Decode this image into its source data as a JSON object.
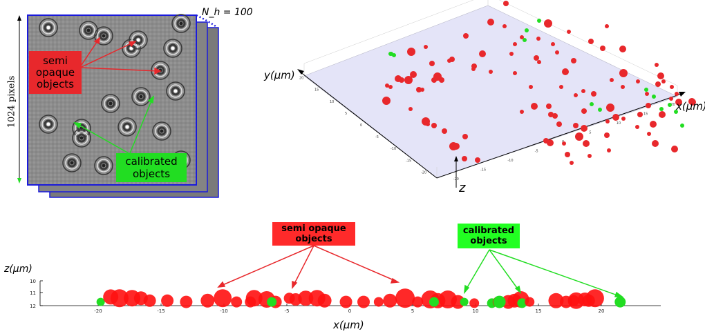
{
  "hologram_panel": {
    "stack_label": "N_h = 100",
    "size_label": "1024 pixels",
    "semi_opaque_label": [
      "semi",
      "opaque",
      "objects"
    ],
    "calibrated_label": [
      "calibrated",
      "objects"
    ],
    "colors": {
      "semi_opaque": "#e8282c",
      "calibrated": "#22dd22",
      "frame": "#1a1adb"
    }
  },
  "plot3d": {
    "x_axis_label": "x(μm)",
    "y_axis_label": "y(μm)",
    "z_axis_label": "z",
    "x_ticks": [
      "-20",
      "-15",
      "-10",
      "-5",
      "0",
      "5",
      "10",
      "15",
      "20"
    ],
    "y_ticks": [
      "-20",
      "-15",
      "-10",
      "-5",
      "0",
      "5",
      "10",
      "15",
      "20"
    ],
    "plane_color": "#e4e4f8"
  },
  "side_plot": {
    "semi_opaque_label": [
      "semi opaque",
      "objects"
    ],
    "calibrated_label": [
      "calibrated",
      "objects"
    ],
    "x_axis_label": "x(μm)",
    "z_axis_label": "z(μm)",
    "x_ticks": [
      "-20",
      "-15",
      "-10",
      "-5",
      "0",
      "5",
      "10",
      "15",
      "20"
    ],
    "z_ticks": [
      "10",
      "11",
      "12"
    ]
  }
}
